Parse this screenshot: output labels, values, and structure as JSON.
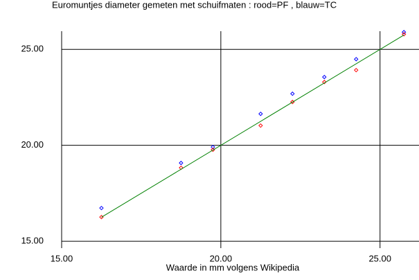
{
  "chart_data": {
    "type": "scatter",
    "title": "Euromuntjes diameter gemeten met schuifmaten : rood=PF , blauw=TC",
    "x_label": "Waarde in mm volgens Wikipedia",
    "xlim": [
      15,
      26.05
    ],
    "ylim": [
      14.93,
      25.95
    ],
    "xticks": [
      {
        "value": 15,
        "label": "15.00"
      },
      {
        "value": 20,
        "label": "20.00"
      },
      {
        "value": 25,
        "label": "25.00"
      }
    ],
    "yticks": [
      {
        "value": 15,
        "label": "15.00"
      },
      {
        "value": 20,
        "label": "20.00"
      },
      {
        "value": 25,
        "label": "25.00"
      }
    ],
    "grid": true,
    "series": [
      {
        "type": "scatter",
        "color": "#0000ff",
        "x": [
          16.25,
          18.75,
          19.75,
          21.25,
          22.25,
          23.25,
          24.25,
          25.75
        ],
        "values": [
          16.73,
          19.08,
          19.91,
          21.64,
          22.69,
          23.56,
          24.49,
          25.9
        ]
      },
      {
        "type": "scatter",
        "color": "#ff0000",
        "x": [
          16.25,
          18.75,
          19.75,
          21.25,
          22.25,
          23.25,
          24.25,
          25.75
        ],
        "values": [
          16.26,
          18.83,
          19.77,
          21.03,
          22.26,
          23.3,
          23.92,
          25.79
        ]
      },
      {
        "type": "line",
        "color": "#008000",
        "x": [
          16.25,
          25.75
        ],
        "values": [
          16.25,
          25.75
        ]
      }
    ]
  }
}
